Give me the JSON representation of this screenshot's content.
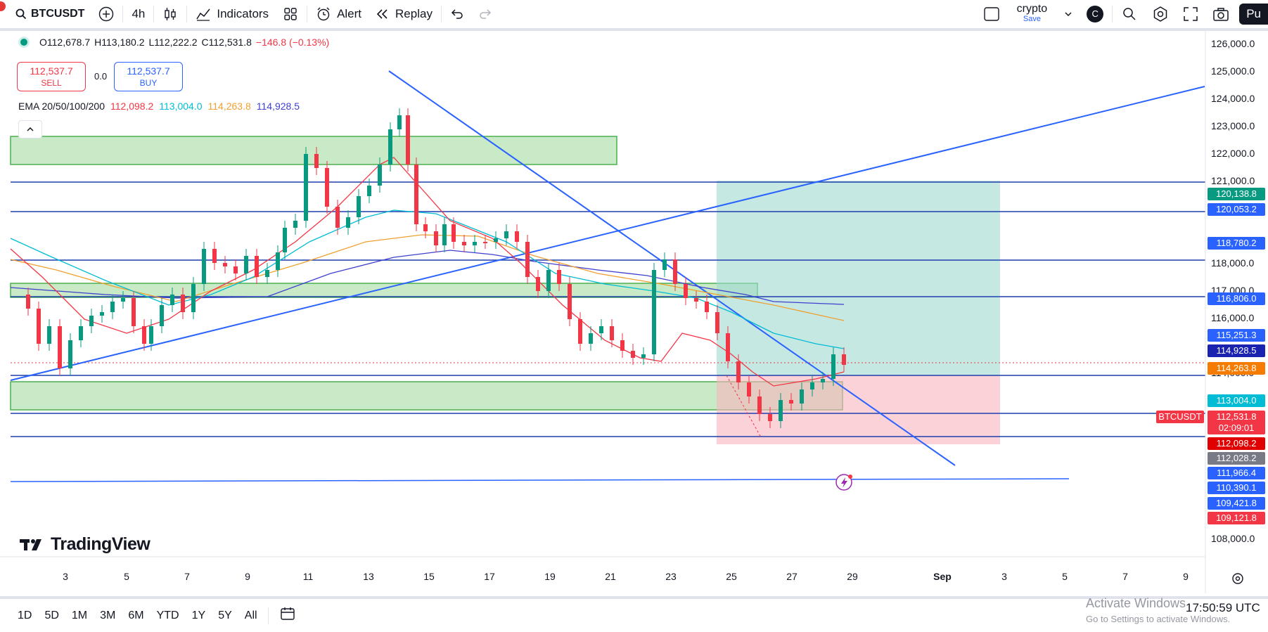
{
  "toolbar": {
    "symbol": "BTCUSDT",
    "interval": "4h",
    "indicators_label": "Indicators",
    "alert_label": "Alert",
    "replay_label": "Replay",
    "layout_name": "crypto",
    "layout_sub": "Save",
    "avatar_letter": "C",
    "publish_label": "Pu"
  },
  "legend": {
    "open": "O112,678.7",
    "high": "H113,180.2",
    "low": "L112,222.2",
    "close": "C112,531.8",
    "change": "−146.8 (−0.13%)"
  },
  "trade": {
    "sell_price": "112,537.7",
    "sell_label": "SELL",
    "spread": "0.0",
    "buy_price": "112,537.7",
    "buy_label": "BUY"
  },
  "ema": {
    "label": "EMA 20/50/100/200",
    "v20": "112,098.2",
    "v50": "113,004.0",
    "v100": "114,263.8",
    "v200": "114,928.5",
    "color20": "#f23645",
    "color50": "#00bcd4",
    "color100": "#f0a030",
    "color200": "#3f3fd0"
  },
  "brand": "TradingView",
  "price_axis": {
    "ticks": [
      "126,000.0",
      "125,000.0",
      "124,000.0",
      "123,000.0",
      "122,000.0",
      "121,000.0",
      "118,000.0",
      "117,000.0",
      "116,000.0",
      "114,000.0",
      "108,000.0"
    ],
    "labels": [
      {
        "text": "120,138.8",
        "color": "#089981"
      },
      {
        "text": "120,053.2",
        "color": "#2962ff"
      },
      {
        "text": "118,780.2",
        "color": "#2962ff"
      },
      {
        "text": "116,806.0",
        "color": "#2962ff"
      },
      {
        "text": "115,251.3",
        "color": "#2962ff"
      },
      {
        "text": "114,928.5",
        "color": "#1a23b0"
      },
      {
        "text": "114,263.8",
        "color": "#f57c00"
      },
      {
        "text": "113,004.0",
        "color": "#00bcd4"
      },
      {
        "text": "112,531.8",
        "color": "#f23645"
      },
      {
        "text": "02:09:01",
        "color": "#f23645"
      },
      {
        "text": "112,098.2",
        "color": "#e00000"
      },
      {
        "text": "112,028.2",
        "color": "#787b86"
      },
      {
        "text": "111,966.4",
        "color": "#2962ff"
      },
      {
        "text": "110,390.1",
        "color": "#2962ff"
      },
      {
        "text": "109,421.8",
        "color": "#2962ff"
      },
      {
        "text": "109,121.8",
        "color": "#f23645"
      }
    ],
    "symbol_tag": "BTCUSDT"
  },
  "time_axis": [
    "3",
    "5",
    "7",
    "9",
    "11",
    "13",
    "15",
    "17",
    "19",
    "21",
    "23",
    "25",
    "27",
    "29",
    "Sep",
    "3",
    "5",
    "7",
    "9"
  ],
  "ranges": [
    "1D",
    "5D",
    "1M",
    "3M",
    "6M",
    "YTD",
    "1Y",
    "5Y",
    "All"
  ],
  "watermark": {
    "line1": "Activate Windows",
    "line2": "Go to Settings to activate Windows."
  },
  "clock": "17:50:59 UTC"
}
